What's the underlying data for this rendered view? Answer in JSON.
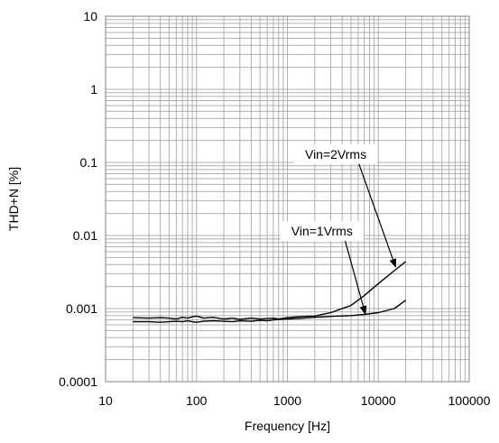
{
  "chart_data": {
    "type": "line",
    "xlabel": "Frequency [Hz]",
    "ylabel": "THD+N [%]",
    "x_scale": "log",
    "y_scale": "log",
    "xlim": [
      10,
      100000
    ],
    "ylim": [
      0.0001,
      10
    ],
    "x_ticks": [
      "10",
      "100",
      "1000",
      "10000",
      "100000"
    ],
    "y_ticks": [
      "10",
      "1",
      "0.1",
      "0.01",
      "0.001",
      "0.0001"
    ],
    "grid": true,
    "series": [
      {
        "x": [
          20,
          30,
          40,
          50,
          60,
          70,
          80,
          90,
          100,
          120,
          150,
          200,
          250,
          300,
          400,
          500,
          600,
          700,
          800,
          1000,
          1500,
          2000,
          3000,
          5000,
          7000,
          10000,
          15000,
          20000
        ],
        "y": [
          0.00075,
          0.00074,
          0.00075,
          0.00074,
          0.00072,
          0.00076,
          0.00074,
          0.00077,
          0.00079,
          0.00074,
          0.00076,
          0.00072,
          0.00074,
          0.00071,
          0.00074,
          0.00072,
          0.00073,
          0.00074,
          0.00072,
          0.00075,
          0.00078,
          0.00079,
          0.00088,
          0.0011,
          0.0015,
          0.0022,
          0.0033,
          0.0044
        ]
      },
      {
        "x": [
          20,
          30,
          40,
          50,
          60,
          70,
          80,
          90,
          100,
          120,
          150,
          200,
          250,
          300,
          400,
          500,
          600,
          700,
          800,
          1000,
          1500,
          2000,
          3000,
          5000,
          7000,
          10000,
          15000,
          20000
        ],
        "y": [
          0.00066,
          0.00066,
          0.00065,
          0.00066,
          0.00067,
          0.00066,
          0.00068,
          0.00066,
          0.00065,
          0.00067,
          0.00068,
          0.00067,
          0.00066,
          0.00068,
          0.00067,
          0.00069,
          0.00068,
          0.0007,
          0.00071,
          0.00072,
          0.00074,
          0.00076,
          0.00078,
          0.0008,
          0.00083,
          0.00088,
          0.001,
          0.0013
        ]
      }
    ],
    "annotations": [
      {
        "text": "Vin=2Vrms",
        "box_x": 3400,
        "box_y": 0.13,
        "arrow_to_x": 15500,
        "arrow_to_y": 0.0037
      },
      {
        "text": "Vin=1Vrms",
        "box_x": 2400,
        "box_y": 0.0115,
        "arrow_to_x": 7200,
        "arrow_to_y": 0.00084
      }
    ]
  }
}
